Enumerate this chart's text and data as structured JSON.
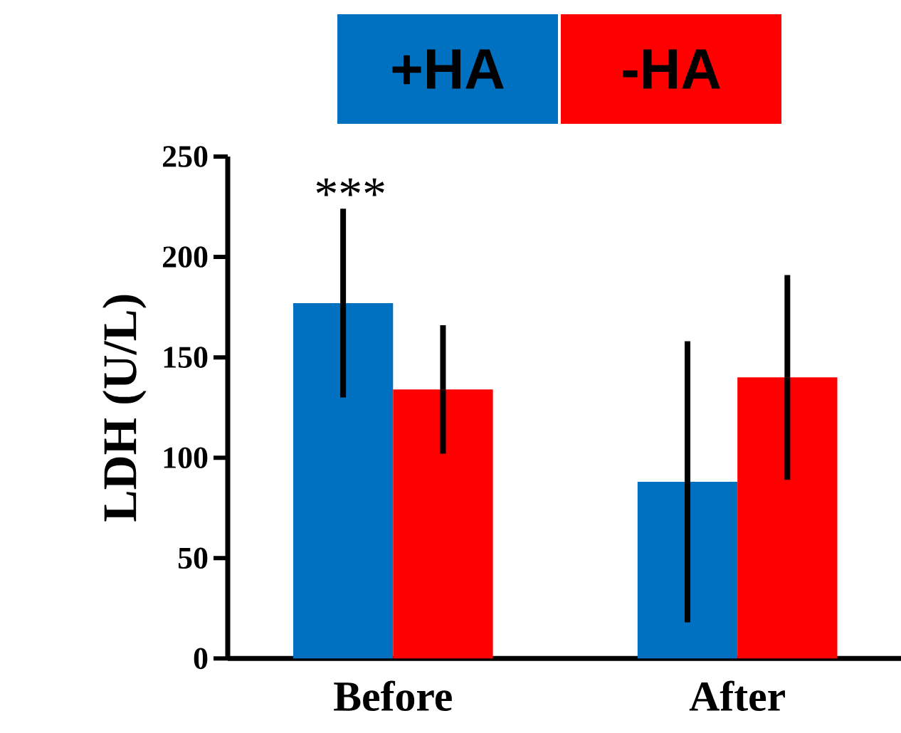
{
  "chart_data": {
    "type": "bar",
    "ylabel": "LDH (U/L)",
    "categories": [
      "Before",
      "After"
    ],
    "series": [
      {
        "name": "+HA",
        "color": "#0070c0",
        "values": [
          177,
          88
        ],
        "errors": [
          [
            130,
            224
          ],
          [
            18,
            158
          ]
        ]
      },
      {
        "name": "-HA",
        "color": "#ff0000",
        "values": [
          134,
          140
        ],
        "errors": [
          [
            102,
            166
          ],
          [
            89,
            191
          ]
        ]
      }
    ],
    "ylim": [
      0,
      250
    ],
    "yticks": [
      0,
      50,
      100,
      150,
      200,
      250
    ],
    "annotations": [
      "***"
    ],
    "legend": "top",
    "grid": false
  }
}
